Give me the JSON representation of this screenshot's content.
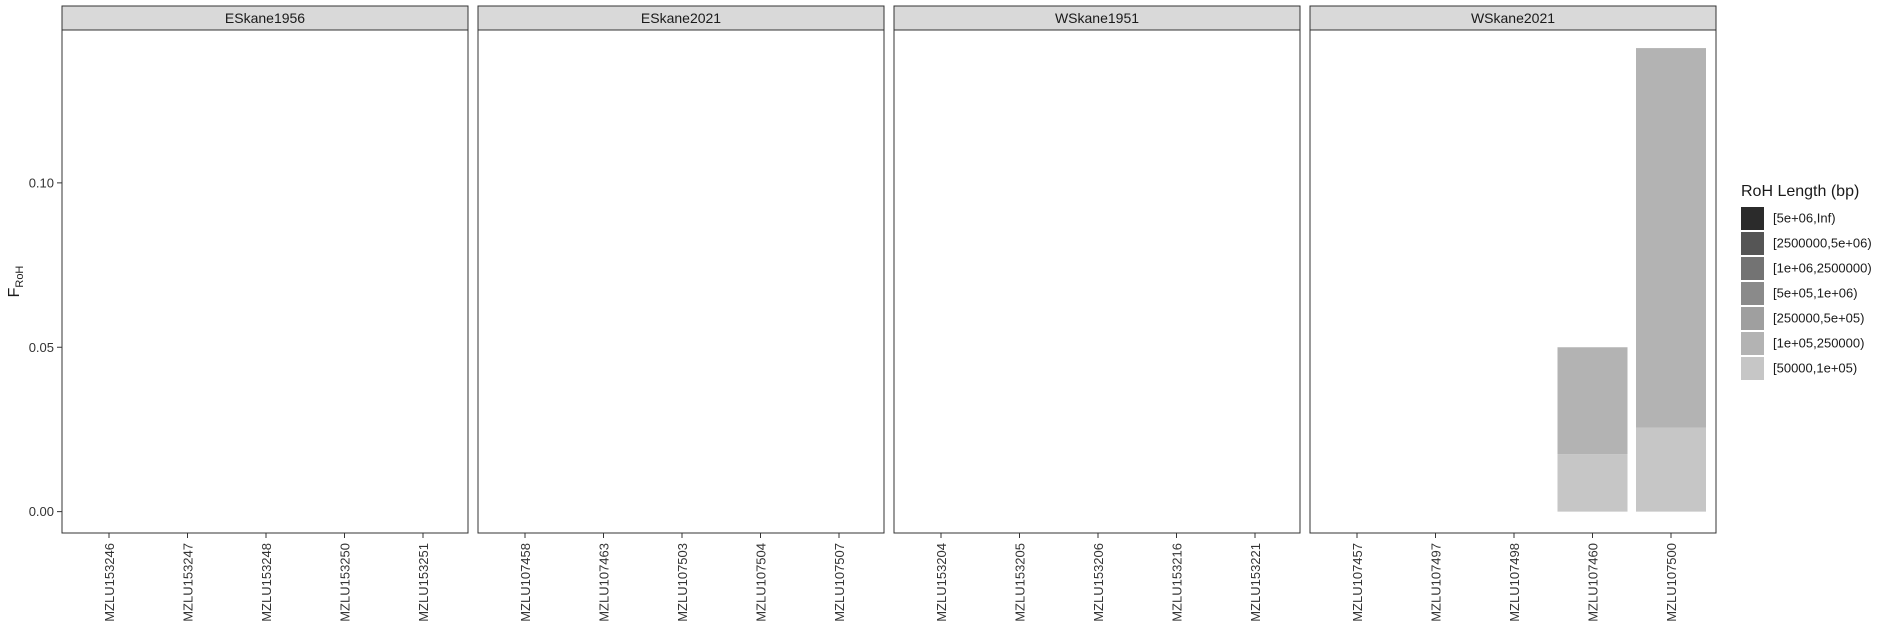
{
  "chart_data": {
    "type": "bar",
    "stacked": true,
    "ylabel_main": "F",
    "ylabel_sub": "RoH",
    "ylim": [
      -0.0065,
      0.1465
    ],
    "y_ticks": [
      {
        "value": 0.0,
        "label": "0.00"
      },
      {
        "value": 0.05,
        "label": "0.05"
      },
      {
        "value": 0.1,
        "label": "0.10"
      }
    ],
    "grid": false,
    "legend": {
      "title": "RoH Length (bp)",
      "placement": "right",
      "entries": [
        {
          "label": "[5e+06,Inf)",
          "color": "#2b2b2b"
        },
        {
          "label": "[2500000,5e+06)",
          "color": "#555555"
        },
        {
          "label": "[1e+06,2500000)",
          "color": "#737373"
        },
        {
          "label": "[5e+05,1e+06)",
          "color": "#8a8a8a"
        },
        {
          "label": "[250000,5e+05)",
          "color": "#9f9f9f"
        },
        {
          "label": "[1e+05,250000)",
          "color": "#b3b3b3"
        },
        {
          "label": "[50000,1e+05)",
          "color": "#c6c6c6"
        }
      ]
    },
    "panels": [
      {
        "name": "ESkane1956",
        "categories": [
          "MZLU153246",
          "MZLU153247",
          "MZLU153248",
          "MZLU153250",
          "MZLU153251"
        ],
        "series": []
      },
      {
        "name": "ESkane2021",
        "categories": [
          "MZLU107458",
          "MZLU107463",
          "MZLU107503",
          "MZLU107504",
          "MZLU107507"
        ],
        "series": []
      },
      {
        "name": "WSkane1951",
        "categories": [
          "MZLU153204",
          "MZLU153205",
          "MZLU153206",
          "MZLU153216",
          "MZLU153221"
        ],
        "series": []
      },
      {
        "name": "WSkane2021",
        "categories": [
          "MZLU107457",
          "MZLU107497",
          "MZLU107498",
          "MZLU107460",
          "MZLU107500"
        ],
        "series": [
          {
            "name": "[50000,1e+05)",
            "values": [
              0,
              0,
              0,
              0.0175,
              0.0255
            ]
          },
          {
            "name": "[1e+05,250000)",
            "values": [
              0,
              0,
              0,
              0.0325,
              0.1155
            ]
          }
        ]
      }
    ]
  }
}
